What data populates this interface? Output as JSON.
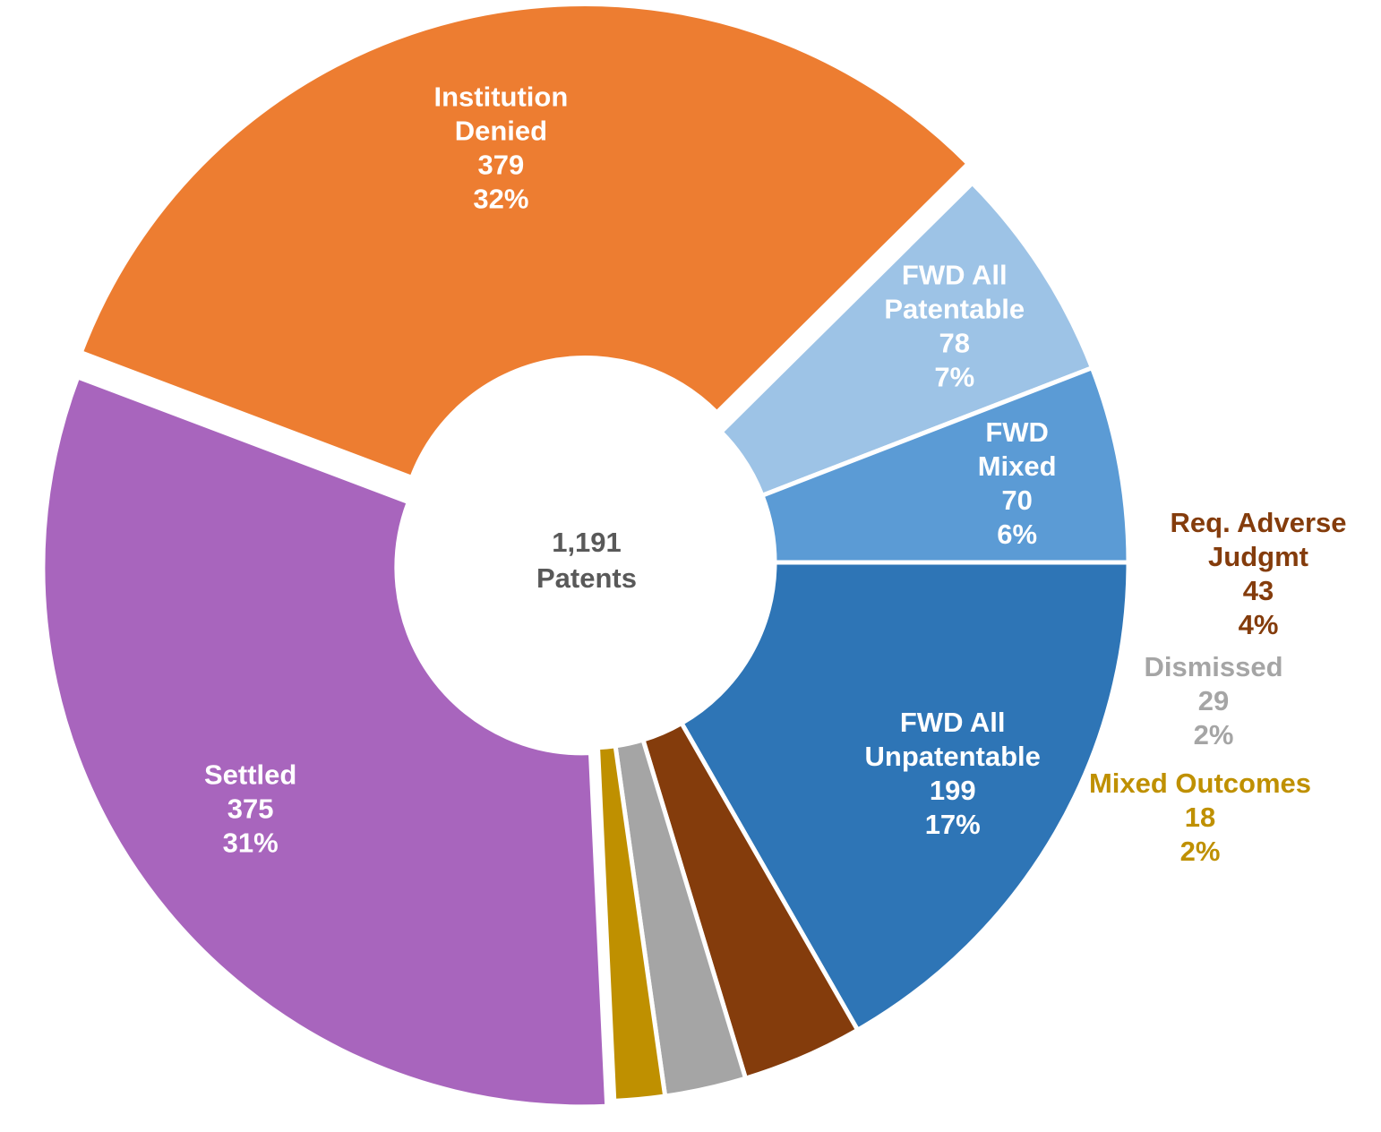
{
  "chart_data": {
    "type": "pie",
    "variant": "donut",
    "title": "",
    "center_label": {
      "value": "1,191",
      "unit": "Patents"
    },
    "total": 1191,
    "slices": [
      {
        "label_lines": [
          "FWD All",
          "Unpatentable"
        ],
        "value": 199,
        "percent": "17%",
        "color": "#2E75B6",
        "label_color": "#FFFFFF"
      },
      {
        "label_lines": [
          "Req. Adverse",
          "Judgmt"
        ],
        "value": 43,
        "percent": "4%",
        "color": "#843C0C",
        "label_color": "#843C0C"
      },
      {
        "label_lines": [
          "Dismissed"
        ],
        "value": 29,
        "percent": "2%",
        "color": "#A5A5A5",
        "label_color": "#A5A5A5"
      },
      {
        "label_lines": [
          "Mixed Outcomes"
        ],
        "value": 18,
        "percent": "2%",
        "color": "#BF9000",
        "label_color": "#BF9000"
      },
      {
        "label_lines": [
          "Settled"
        ],
        "value": 375,
        "percent": "31%",
        "color": "#A865BD",
        "label_color": "#FFFFFF"
      },
      {
        "label_lines": [
          "Institution",
          "Denied"
        ],
        "value": 379,
        "percent": "32%",
        "color": "#ED7D31",
        "label_color": "#FFFFFF"
      },
      {
        "label_lines": [
          "FWD All",
          "Patentable"
        ],
        "value": 78,
        "percent": "7%",
        "color": "#9DC3E6",
        "label_color": "#FFFFFF"
      },
      {
        "label_lines": [
          "FWD",
          "Mixed"
        ],
        "value": 70,
        "percent": "6%",
        "color": "#5B9BD5",
        "label_color": "#FFFFFF"
      }
    ]
  }
}
